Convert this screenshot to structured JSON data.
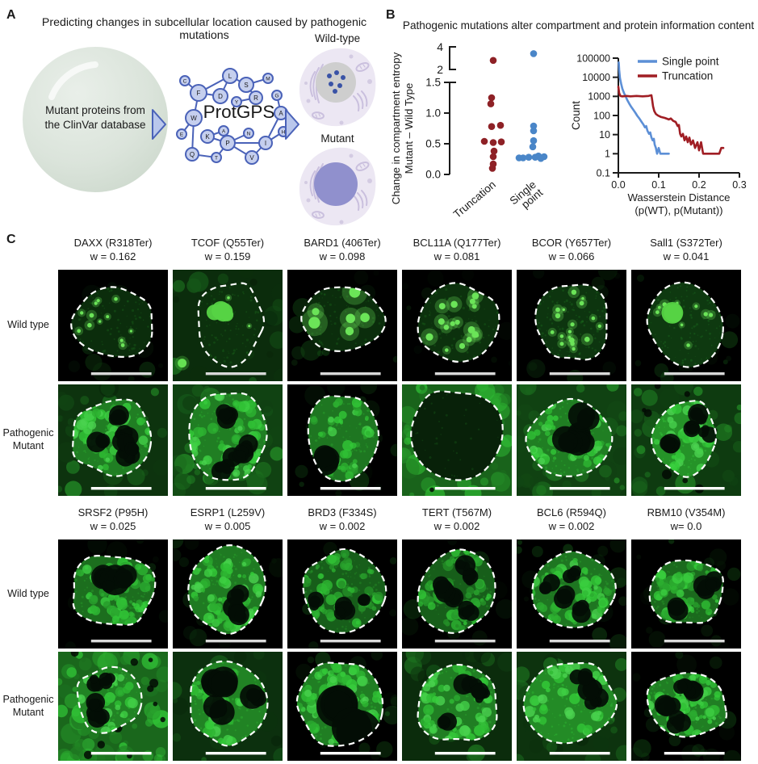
{
  "panelA": {
    "label": "A",
    "title": "Predicting changes in subcellular location caused by pathogenic mutations",
    "db_text": "Mutant proteins from the ClinVar database",
    "protgps": "ProtGPS",
    "wildtype_label": "Wild-type",
    "mutant_label": "Mutant",
    "colors": {
      "node_fill": "#c5cfee",
      "node_stroke": "#4a62b8",
      "arrow_fill": "#b9c7ec",
      "circle_fill": "#d8e1d8",
      "cell_body": "#ece7f3",
      "organelle": "#c7bcdc",
      "wt_nucleus": "#cecece",
      "mut_nucleus": "#9090cd",
      "nuclear_dots": "#3a53a6"
    },
    "network": {
      "nodes": [
        [
          "C",
          25,
          24,
          6
        ],
        [
          "L",
          81,
          18,
          9
        ],
        [
          "M",
          128,
          21,
          6
        ],
        [
          "S",
          101,
          29,
          9
        ],
        [
          "F",
          42,
          39,
          10
        ],
        [
          "D",
          69,
          43,
          9
        ],
        [
          "Y",
          89,
          50,
          6
        ],
        [
          "R",
          113,
          45,
          8
        ],
        [
          "G",
          139,
          42,
          6
        ],
        [
          "W",
          36,
          70,
          10
        ],
        [
          "A",
          144,
          64,
          8
        ],
        [
          "E",
          21,
          90,
          6
        ],
        [
          "K",
          53,
          93,
          8
        ],
        [
          "A",
          73,
          86,
          6
        ],
        [
          "N",
          104,
          89,
          6
        ],
        [
          "P",
          78,
          101,
          9
        ],
        [
          "I",
          125,
          101,
          8
        ],
        [
          "H",
          147,
          87,
          6
        ],
        [
          "Q",
          34,
          115,
          8
        ],
        [
          "T",
          64,
          119,
          6
        ],
        [
          "V",
          108,
          119,
          8
        ]
      ],
      "edges": [
        [
          0,
          4
        ],
        [
          4,
          1
        ],
        [
          4,
          5
        ],
        [
          1,
          5
        ],
        [
          1,
          3
        ],
        [
          3,
          2
        ],
        [
          3,
          7
        ],
        [
          6,
          7
        ],
        [
          8,
          10
        ],
        [
          10,
          16
        ],
        [
          4,
          9
        ],
        [
          9,
          11
        ],
        [
          9,
          18
        ],
        [
          12,
          13
        ],
        [
          12,
          15
        ],
        [
          18,
          19
        ],
        [
          19,
          15
        ],
        [
          15,
          14
        ],
        [
          15,
          16
        ],
        [
          15,
          20
        ],
        [
          16,
          20
        ],
        [
          16,
          17
        ]
      ]
    }
  },
  "panelB": {
    "label": "B",
    "title": "Pathogenic mutations alter compartment and protein information content"
  },
  "chart_data": [
    {
      "type": "scatter",
      "title": "",
      "ylabel_line1": "Change in compartment entropy",
      "ylabel_line2": "Mutant – Wild Type",
      "categories": [
        "Truncation",
        "Single point"
      ],
      "axis_break": true,
      "lower_ticks": [
        0,
        0.5,
        1.0,
        1.5
      ],
      "lower_tick_labels": [
        "0.0",
        "0.5",
        "1.0",
        "1.5"
      ],
      "upper_ticks": [
        4,
        2
      ],
      "upper_tick_labels": [
        "4",
        "2"
      ],
      "series": [
        {
          "name": "Truncation",
          "color": "#8e2126",
          "values": [
            2.8,
            1.25,
            1.15,
            0.8,
            0.78,
            0.54,
            0.52,
            0.53,
            0.38,
            0.29,
            0.17,
            0.1
          ],
          "jitter": [
            0,
            -2,
            -3,
            9,
            -2,
            -11,
            0,
            10,
            1,
            0,
            0,
            -1
          ]
        },
        {
          "name": "Single point",
          "color": "#4a86c8",
          "values": [
            3.4,
            0.79,
            0.71,
            0.55,
            0.45,
            0.3,
            0.29,
            0.28,
            0.28,
            0.27,
            0.27,
            0.26
          ],
          "jitter": [
            0,
            0,
            0,
            0,
            -1,
            6,
            13,
            -6,
            2,
            -13,
            -18,
            9
          ]
        }
      ]
    },
    {
      "type": "line",
      "xlabel_line1": "Wasserstein Distance",
      "xlabel_line2": "(p(WT), p(Mutant))",
      "ylabel": "Count",
      "xlim": [
        0,
        0.3
      ],
      "xticks": [
        0,
        0.1,
        0.2,
        0.3
      ],
      "xtick_labels": [
        "0.0",
        "0.1",
        "0.2",
        "0.3"
      ],
      "ytick_labels": [
        "100000",
        "10000",
        "1000",
        "100",
        "10",
        "1",
        "0.1"
      ],
      "yticks": [
        100000,
        10000,
        1000,
        100,
        10,
        1,
        0.1
      ],
      "legend_position": "top",
      "series": [
        {
          "name": "Single point",
          "color": "#5c8fd6",
          "points": [
            [
              0.001,
              60000
            ],
            [
              0.002,
              25000
            ],
            [
              0.004,
              9000
            ],
            [
              0.007,
              4500
            ],
            [
              0.01,
              2500
            ],
            [
              0.014,
              1500
            ],
            [
              0.018,
              1000
            ],
            [
              0.022,
              650
            ],
            [
              0.027,
              420
            ],
            [
              0.032,
              280
            ],
            [
              0.037,
              200
            ],
            [
              0.042,
              140
            ],
            [
              0.047,
              95
            ],
            [
              0.052,
              70
            ],
            [
              0.057,
              48
            ],
            [
              0.062,
              34
            ],
            [
              0.066,
              24
            ],
            [
              0.069,
              28
            ],
            [
              0.072,
              16
            ],
            [
              0.076,
              11
            ],
            [
              0.079,
              13
            ],
            [
              0.082,
              7
            ],
            [
              0.085,
              5
            ],
            [
              0.088,
              6
            ],
            [
              0.09,
              3
            ],
            [
              0.093,
              2
            ],
            [
              0.096,
              1
            ],
            [
              0.1,
              2
            ],
            [
              0.104,
              1
            ],
            [
              0.125,
              1
            ]
          ]
        },
        {
          "name": "Truncation",
          "color": "#a01e24",
          "points": [
            [
              0.0,
              3200
            ],
            [
              0.002,
              1500
            ],
            [
              0.005,
              1050
            ],
            [
              0.01,
              1000
            ],
            [
              0.02,
              1050
            ],
            [
              0.03,
              1000
            ],
            [
              0.045,
              1050
            ],
            [
              0.06,
              1000
            ],
            [
              0.075,
              1050
            ],
            [
              0.082,
              1150
            ],
            [
              0.084,
              600
            ],
            [
              0.086,
              300
            ],
            [
              0.089,
              170
            ],
            [
              0.093,
              120
            ],
            [
              0.098,
              100
            ],
            [
              0.105,
              85
            ],
            [
              0.115,
              75
            ],
            [
              0.125,
              62
            ],
            [
              0.13,
              70
            ],
            [
              0.136,
              52
            ],
            [
              0.142,
              46
            ],
            [
              0.147,
              28
            ],
            [
              0.15,
              32
            ],
            [
              0.153,
              11
            ],
            [
              0.156,
              8
            ],
            [
              0.16,
              11
            ],
            [
              0.164,
              5
            ],
            [
              0.168,
              8
            ],
            [
              0.172,
              4
            ],
            [
              0.176,
              7
            ],
            [
              0.18,
              3
            ],
            [
              0.185,
              5
            ],
            [
              0.19,
              2
            ],
            [
              0.196,
              4
            ],
            [
              0.2,
              1.5
            ],
            [
              0.205,
              4
            ],
            [
              0.21,
              1
            ],
            [
              0.22,
              1
            ],
            [
              0.235,
              1
            ],
            [
              0.25,
              1
            ],
            [
              0.255,
              2
            ],
            [
              0.26,
              2
            ]
          ]
        }
      ]
    }
  ],
  "panelC": {
    "label": "C",
    "row_labels": [
      "Wild type",
      "Pathogenic Mutant",
      "Wild type",
      "Pathogenic Mutant"
    ],
    "groups": [
      {
        "headers": [
          {
            "gene": "DAXX (R318Ter)",
            "w": "w = 0.162"
          },
          {
            "gene": "TCOF (Q55Ter)",
            "w": "w = 0.159"
          },
          {
            "gene": "BARD1 (406Ter)",
            "w": "w = 0.098"
          },
          {
            "gene": "BCL11A (Q177Ter)",
            "w": "w = 0.081"
          },
          {
            "gene": "BCOR (Y657Ter)",
            "w": "w = 0.066"
          },
          {
            "gene": "Sall1 (S372Ter)",
            "w": "w = 0.041"
          }
        ],
        "rows": [
          [
            {
              "b": 0.1,
              "o": 0.1,
              "p": 12,
              "rx": 0.4,
              "ry": 0.33
            },
            {
              "b": 0.12,
              "o": 0.22,
              "p": 2,
              "big": 1,
              "op": 1,
              "rx": 0.3,
              "ry": 0.38,
              "nx": 0.52
            },
            {
              "b": 0.1,
              "o": 0.08,
              "p": 6,
              "pr": 2.4,
              "rx": 0.42,
              "ry": 0.31,
              "ny": 0.44
            },
            {
              "b": 0.12,
              "o": 0.06,
              "p": 16,
              "pr": 1.5,
              "rx": 0.4,
              "ry": 0.36
            },
            {
              "b": 0.13,
              "o": 0.06,
              "p": 18,
              "pr": 1.1,
              "rx": 0.33,
              "ry": 0.36
            },
            {
              "b": 0.16,
              "o": 0.14,
              "p": 9,
              "big": 1,
              "rx": 0.36,
              "ry": 0.38
            }
          ],
          [
            {
              "b": 0.5,
              "o": 0.3,
              "s": 38,
              "d": 6
            },
            {
              "b": 0.5,
              "o": 0.45,
              "s": 38,
              "d": 6,
              "rx": 0.36,
              "ry": 0.42
            },
            {
              "b": 0.45,
              "o": 0.12,
              "s": 26,
              "d": 1,
              "dz": 1.8,
              "rx": 0.33,
              "ry": 0.4
            },
            {
              "b": 0.04,
              "o": 0.75,
              "od": 6,
              "g": 60,
              "rx": 0.42,
              "ry": 0.43
            },
            {
              "b": 0.5,
              "o": 0.42,
              "s": 30,
              "d": 5,
              "dz": 1.3,
              "rx": 0.41,
              "ry": 0.34
            },
            {
              "b": 0.6,
              "o": 0.38,
              "od": 10,
              "s": 34,
              "d": 4,
              "rx": 0.3,
              "ry": 0.36
            }
          ]
        ]
      },
      {
        "headers": [
          {
            "gene": "SRSF2 (P95H)",
            "w": "w = 0.025"
          },
          {
            "gene": "ESRP1 (L259V)",
            "w": "w = 0.005"
          },
          {
            "gene": "BRD3 (F334S)",
            "w": "w = 0.002"
          },
          {
            "gene": "TERT (T567M)",
            "w": "w = 0.002"
          },
          {
            "gene": "BCL6 (R594Q)",
            "w": "w = 0.002"
          },
          {
            "gene": "RBM10 (V354M)",
            "w": "w= 0.0"
          }
        ],
        "rows": [
          [
            {
              "b": 0.42,
              "o": 0.04,
              "s": 44,
              "d": 3,
              "dz": 1.5,
              "rx": 0.4,
              "ry": 0.34
            },
            {
              "b": 0.48,
              "o": 0.05,
              "s": 50,
              "d": 3,
              "rx": 0.36,
              "ry": 0.4
            },
            {
              "b": 0.34,
              "o": 0.05,
              "s": 40,
              "d": 4,
              "rx": 0.38,
              "ry": 0.36
            },
            {
              "b": 0.34,
              "o": 0.04,
              "s": 44,
              "d": 5,
              "rx": 0.36,
              "ry": 0.41
            },
            {
              "b": 0.45,
              "o": 0.14,
              "s": 40,
              "d": 4,
              "rx": 0.4,
              "ry": 0.34
            },
            {
              "b": 0.4,
              "o": 0.12,
              "s": 40,
              "d": 3,
              "rx": 0.38,
              "ry": 0.32
            }
          ],
          [
            {
              "b": 0.52,
              "o": 0.8,
              "od": 14,
              "s": 18,
              "d": 4,
              "rx": 0.29,
              "ry": 0.31,
              "nx": 0.45,
              "ny": 0.44
            },
            {
              "b": 0.52,
              "o": 0.25,
              "s": 28,
              "d": 4,
              "dz": 1.5,
              "rx": 0.38,
              "ry": 0.41
            },
            {
              "b": 0.5,
              "o": 0.15,
              "s": 44,
              "d": 2,
              "dz": 2.2,
              "rx": 0.41,
              "ry": 0.41
            },
            {
              "b": 0.5,
              "o": 0.2,
              "s": 40,
              "d": 4,
              "rx": 0.38,
              "ry": 0.37
            },
            {
              "b": 0.55,
              "o": 0.3,
              "s": 26,
              "d": 3,
              "dz": 1.2,
              "rx": 0.42,
              "ry": 0.38
            },
            {
              "b": 0.5,
              "o": 0.15,
              "s": 40,
              "d": 4,
              "rx": 0.4,
              "ry": 0.31
            }
          ]
        ]
      }
    ]
  }
}
